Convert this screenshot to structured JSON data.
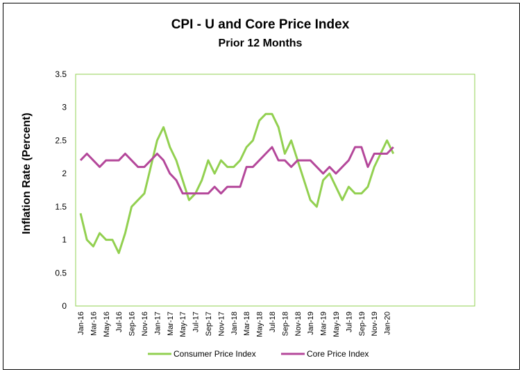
{
  "chart_data": {
    "type": "line",
    "title": "CPI - U and Core Price Index",
    "subtitle": "Prior 12 Months",
    "xlabel": "",
    "ylabel": "Inflation Rate (Percent)",
    "ylim": [
      0,
      3.5
    ],
    "yticks": [
      "0",
      "0.5",
      "1",
      "1.5",
      "2",
      "2.5",
      "3",
      "3.5"
    ],
    "ytick_values": [
      0,
      0.5,
      1,
      1.5,
      2,
      2.5,
      3,
      3.5
    ],
    "grid": false,
    "legend": "bottom",
    "categories": [
      "Jan-16",
      "Feb-16",
      "Mar-16",
      "Apr-16",
      "May-16",
      "Jun-16",
      "Jul-16",
      "Aug-16",
      "Sep-16",
      "Oct-16",
      "Nov-16",
      "Dec-16",
      "Jan-17",
      "Feb-17",
      "Mar-17",
      "Apr-17",
      "May-17",
      "Jun-17",
      "Jul-17",
      "Aug-17",
      "Sep-17",
      "Oct-17",
      "Nov-17",
      "Dec-17",
      "Jan-18",
      "Feb-18",
      "Mar-18",
      "Apr-18",
      "May-18",
      "Jun-18",
      "Jul-18",
      "Aug-18",
      "Sep-18",
      "Oct-18",
      "Nov-18",
      "Dec-18",
      "Jan-19",
      "Feb-19",
      "Mar-19",
      "Apr-19",
      "May-19",
      "Jun-19",
      "Jul-19",
      "Aug-19",
      "Sep-19",
      "Oct-19",
      "Nov-19",
      "Dec-19",
      "Jan-20",
      "Feb-20"
    ],
    "xtick_labels": [
      "Jan-16",
      "Mar-16",
      "May-16",
      "Jul-16",
      "Sep-16",
      "Nov-16",
      "Jan-17",
      "Mar-17",
      "May-17",
      "Jul-17",
      "Sep-17",
      "Nov-17",
      "Jan-18",
      "Mar-18",
      "May-18",
      "Jul-18",
      "Sep-18",
      "Nov-18",
      "Jan-19",
      "Mar-19",
      "May-19",
      "Jul-19",
      "Sep-19",
      "Nov-19",
      "Jan-20"
    ],
    "series": [
      {
        "name": "Consumer Price Index",
        "color": "#92D050",
        "values": [
          1.4,
          1.0,
          0.9,
          1.1,
          1.0,
          1.0,
          0.8,
          1.1,
          1.5,
          1.6,
          1.7,
          2.1,
          2.5,
          2.7,
          2.4,
          2.2,
          1.9,
          1.6,
          1.7,
          1.9,
          2.2,
          2.0,
          2.2,
          2.1,
          2.1,
          2.2,
          2.4,
          2.5,
          2.8,
          2.9,
          2.9,
          2.7,
          2.3,
          2.5,
          2.2,
          1.9,
          1.6,
          1.5,
          1.9,
          2.0,
          1.8,
          1.6,
          1.8,
          1.7,
          1.7,
          1.8,
          2.1,
          2.3,
          2.5,
          2.3
        ]
      },
      {
        "name": "Core Price Index",
        "color": "#B4479A",
        "values": [
          2.2,
          2.3,
          2.2,
          2.1,
          2.2,
          2.2,
          2.2,
          2.3,
          2.2,
          2.1,
          2.1,
          2.2,
          2.3,
          2.2,
          2.0,
          1.9,
          1.7,
          1.7,
          1.7,
          1.7,
          1.7,
          1.8,
          1.7,
          1.8,
          1.8,
          1.8,
          2.1,
          2.1,
          2.2,
          2.3,
          2.4,
          2.2,
          2.2,
          2.1,
          2.2,
          2.2,
          2.2,
          2.1,
          2.0,
          2.1,
          2.0,
          2.1,
          2.2,
          2.4,
          2.4,
          2.1,
          2.3,
          2.3,
          2.3,
          2.4
        ]
      }
    ],
    "plot_border_color": "#92D050"
  }
}
